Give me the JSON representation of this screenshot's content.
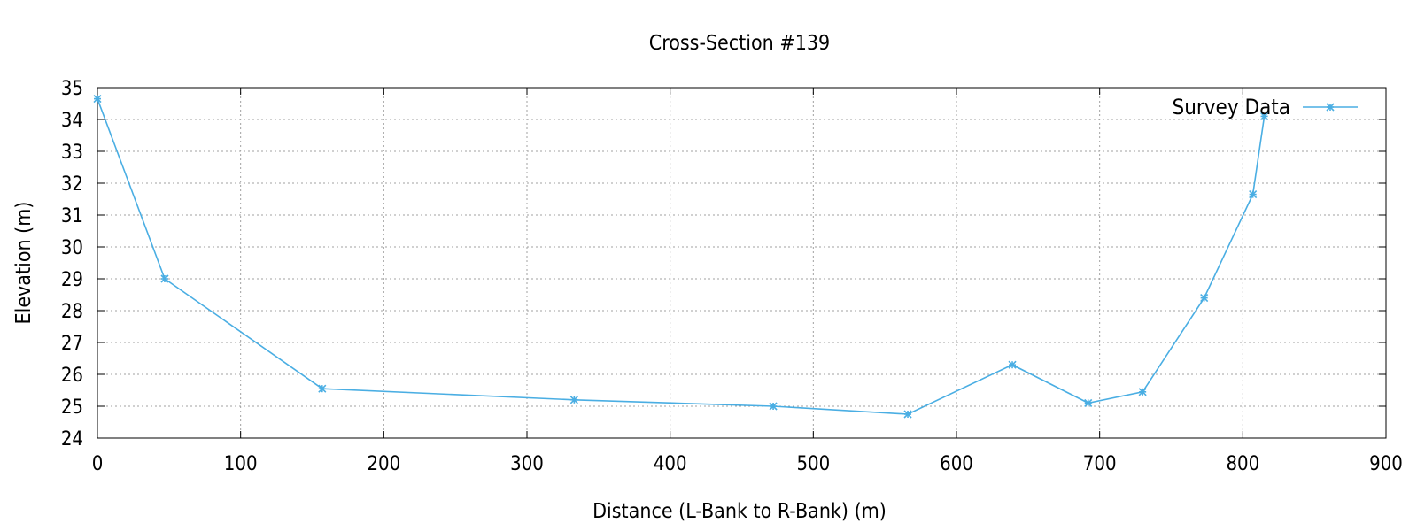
{
  "chart_data": {
    "type": "line",
    "title": "Cross-Section #139",
    "xlabel": "Distance (L-Bank to R-Bank) (m)",
    "ylabel": "Elevation (m)",
    "xlim": [
      0,
      900
    ],
    "ylim": [
      24,
      35
    ],
    "xticks": [
      0,
      100,
      200,
      300,
      400,
      500,
      600,
      700,
      800,
      900
    ],
    "yticks": [
      24,
      25,
      26,
      27,
      28,
      29,
      30,
      31,
      32,
      33,
      34,
      35
    ],
    "grid": true,
    "legend_position": "top-right",
    "series": [
      {
        "name": "Survey Data",
        "color": "#4aaee3",
        "marker": "asterisk",
        "x": [
          0,
          47,
          157,
          333,
          472,
          566,
          639,
          692,
          730,
          773,
          807,
          815
        ],
        "y": [
          34.65,
          29.0,
          25.55,
          25.2,
          25.0,
          24.75,
          26.3,
          25.1,
          25.45,
          28.4,
          31.65,
          34.1
        ]
      }
    ]
  }
}
